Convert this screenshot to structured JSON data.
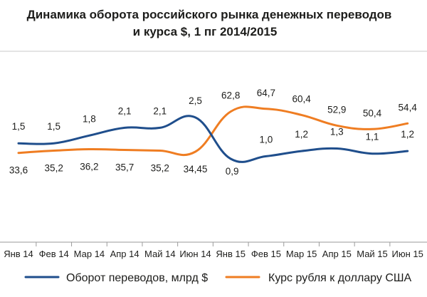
{
  "chart_data": {
    "type": "line",
    "title": "Динамика оборота российского рынка денежных переводов и курса $, 1 пг 2014/2015",
    "title_lines": [
      "Динамика оборота российского рынка денежных переводов",
      "и курса $, 1 пг 2014/2015"
    ],
    "categories": [
      "Янв 14",
      "Фев 14",
      "Мар 14",
      "Апр 14",
      "Май 14",
      "Июн 14",
      "Янв 15",
      "Фев 15",
      "Мар 15",
      "Апр 15",
      "Май 15",
      "Июн 15"
    ],
    "series": [
      {
        "name": "Оборот переводов, млрд $",
        "color": "#1f4e8c",
        "values": [
          1.5,
          1.5,
          1.8,
          2.1,
          2.1,
          2.5,
          0.9,
          1.0,
          1.2,
          1.3,
          1.1,
          1.2
        ],
        "labels": [
          "1,5",
          "1,5",
          "1,8",
          "2,1",
          "2,1",
          "2,5",
          "0,9",
          "1,0",
          "1,2",
          "1,3",
          "1,1",
          "1,2"
        ]
      },
      {
        "name": "Курс рубля к доллару США",
        "color": "#ef7d22",
        "values": [
          33.6,
          35.2,
          36.2,
          35.7,
          35.2,
          34.45,
          62.8,
          64.7,
          60.4,
          52.9,
          50.4,
          54.4
        ],
        "labels": [
          "33,6",
          "35,2",
          "36,2",
          "35,7",
          "35,2",
          "34,45",
          "62,8",
          "64,7",
          "60,4",
          "52,9",
          "50,4",
          "54,4"
        ]
      }
    ],
    "grid": false,
    "legend_position": "bottom"
  }
}
